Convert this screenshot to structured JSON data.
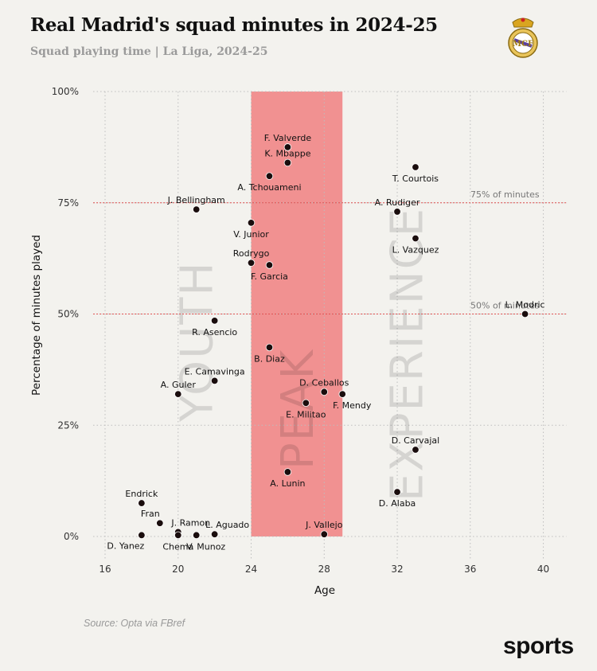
{
  "header": {
    "title": "Real Madrid's squad minutes in 2024-25",
    "subtitle": "Squad playing time | La Liga, 2024-25"
  },
  "footer": {
    "source": "Source: Opta via FBref",
    "brand": "sports"
  },
  "colors": {
    "background": "#f3f2ee",
    "peak_band": "#f08080",
    "reference_line": "#e05050",
    "point": "#1a0d0d"
  },
  "logo": {
    "icon": "real-madrid-crest-icon"
  },
  "chart_data": {
    "type": "scatter",
    "title": "Real Madrid's squad minutes in 2024-25",
    "subtitle": "Squad playing time | La Liga, 2024-25",
    "xlabel": "Age",
    "ylabel": "Percentage of minutes played",
    "xlim": [
      15,
      41
    ],
    "ylim": [
      -5,
      100
    ],
    "xticks": [
      16,
      20,
      24,
      28,
      32,
      36,
      40
    ],
    "xtick_labels": [
      "16",
      "20",
      "24",
      "28",
      "32",
      "36",
      "40"
    ],
    "yticks": [
      0,
      25,
      50,
      75,
      100
    ],
    "ytick_labels": [
      "0%",
      "25%",
      "50%",
      "75%",
      "100%"
    ],
    "grid": "dotted",
    "peak_band": {
      "x_from": 24,
      "x_to": 29
    },
    "reference_lines": [
      {
        "y": 75,
        "label": "75% of minutes"
      },
      {
        "y": 50,
        "label": "50% of minutes"
      }
    ],
    "zones": [
      {
        "label": "YOUTH",
        "x": 21
      },
      {
        "label": "PEAK",
        "x": 26.5
      },
      {
        "label": "EXPERIENCE",
        "x": 32.5
      }
    ],
    "points": [
      {
        "name": "F. Valverde",
        "x": 26,
        "y": 87.5,
        "label_pos": "above"
      },
      {
        "name": "K. Mbappe",
        "x": 26,
        "y": 84,
        "label_pos": "above"
      },
      {
        "name": "A. Tchouameni",
        "x": 25,
        "y": 81,
        "label_pos": "below"
      },
      {
        "name": "T. Courtois",
        "x": 33,
        "y": 83,
        "label_pos": "below"
      },
      {
        "name": "J. Bellingham",
        "x": 21,
        "y": 73.5,
        "label_pos": "above"
      },
      {
        "name": "A. Rudiger",
        "x": 32,
        "y": 73,
        "label_pos": "above"
      },
      {
        "name": "V. Junior",
        "x": 24,
        "y": 70.5,
        "label_pos": "below"
      },
      {
        "name": "L. Vazquez",
        "x": 33,
        "y": 67,
        "label_pos": "below"
      },
      {
        "name": "Rodrygo",
        "x": 24,
        "y": 61.5,
        "label_pos": "above"
      },
      {
        "name": "F. Garcia",
        "x": 25,
        "y": 61,
        "label_pos": "below"
      },
      {
        "name": "L. Modric",
        "x": 39,
        "y": 50,
        "label_pos": "above"
      },
      {
        "name": "R. Asencio",
        "x": 22,
        "y": 48.5,
        "label_pos": "below"
      },
      {
        "name": "B. Diaz",
        "x": 25,
        "y": 42.5,
        "label_pos": "below"
      },
      {
        "name": "E. Camavinga",
        "x": 22,
        "y": 35,
        "label_pos": "above"
      },
      {
        "name": "A. Guler",
        "x": 20,
        "y": 32,
        "label_pos": "above"
      },
      {
        "name": "D. Ceballos",
        "x": 28,
        "y": 32.5,
        "label_pos": "above"
      },
      {
        "name": "F. Mendy",
        "x": 29,
        "y": 32,
        "label_pos": "below-right"
      },
      {
        "name": "E. Militao",
        "x": 27,
        "y": 30,
        "label_pos": "below"
      },
      {
        "name": "D. Carvajal",
        "x": 33,
        "y": 19.5,
        "label_pos": "above"
      },
      {
        "name": "A. Lunin",
        "x": 26,
        "y": 14.5,
        "label_pos": "below"
      },
      {
        "name": "D. Alaba",
        "x": 32,
        "y": 10,
        "label_pos": "below"
      },
      {
        "name": "Endrick",
        "x": 18,
        "y": 7.5,
        "label_pos": "above"
      },
      {
        "name": "Fran",
        "x": 19,
        "y": 3,
        "label_pos": "above-left"
      },
      {
        "name": "J. Ramon",
        "x": 20,
        "y": 1,
        "label_pos": "above-right"
      },
      {
        "name": "L. Aguado",
        "x": 22,
        "y": 0.5,
        "label_pos": "above-right"
      },
      {
        "name": "J. Vallejo",
        "x": 28,
        "y": 0.5,
        "label_pos": "above"
      },
      {
        "name": "D. Yanez",
        "x": 18,
        "y": 0.3,
        "label_pos": "below-left"
      },
      {
        "name": "Chema",
        "x": 20,
        "y": 0.3,
        "label_pos": "below"
      },
      {
        "name": "V. Munoz",
        "x": 21,
        "y": 0.3,
        "label_pos": "below-right"
      }
    ]
  }
}
